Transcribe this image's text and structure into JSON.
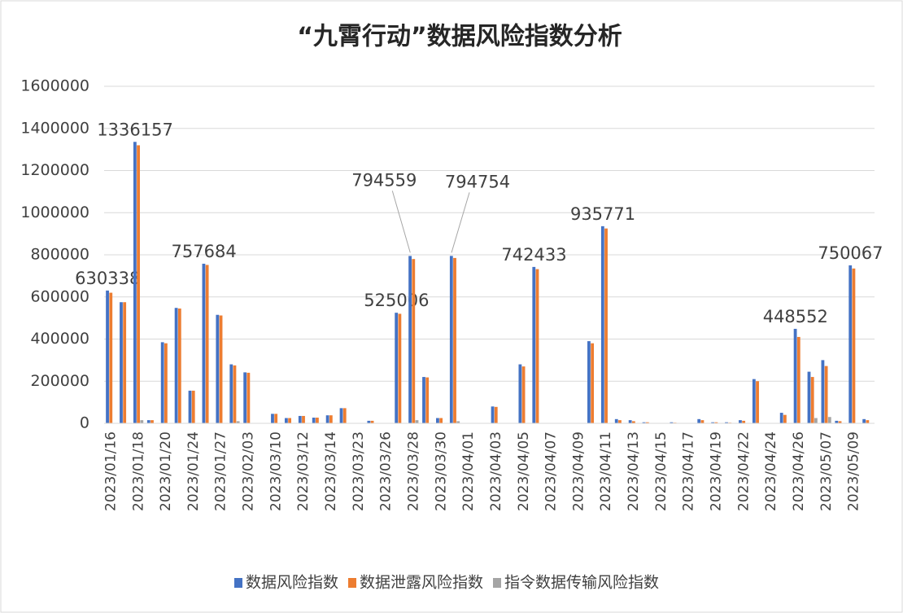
{
  "chart_data": {
    "type": "bar",
    "title": "“九霄行动”数据风险指数分析",
    "categories": [
      "2023/01/16",
      null,
      "2023/01/18",
      null,
      "2023/01/20",
      null,
      "2023/01/24",
      null,
      "2023/01/27",
      null,
      "2023/02/03",
      null,
      "2023/03/10",
      null,
      "2023/03/12",
      null,
      "2023/03/14",
      null,
      "2023/03/23",
      null,
      "2023/03/26",
      null,
      "2023/03/28",
      null,
      "2023/03/30",
      null,
      "2023/04/01",
      null,
      "2023/04/03",
      null,
      "2023/04/05",
      null,
      "2023/04/07",
      null,
      "2023/04/09",
      null,
      "2023/04/11",
      null,
      "2023/04/13",
      null,
      "2023/04/15",
      null,
      "2023/04/17",
      null,
      "2023/04/19",
      null,
      "2023/04/22",
      null,
      "2023/04/24",
      null,
      "2023/04/26",
      null,
      "2023/05/07",
      null,
      "2023/05/09",
      null
    ],
    "series": [
      {
        "name": "数据风险指数",
        "color": "#4472c4",
        "values": [
          630338,
          575000,
          1336157,
          15000,
          385000,
          548000,
          155000,
          757684,
          515000,
          280000,
          242000,
          0,
          45000,
          25000,
          35000,
          27000,
          38000,
          72000,
          0,
          12000,
          0,
          525006,
          794559,
          220000,
          25000,
          794754,
          0,
          0,
          80000,
          0,
          280000,
          742433,
          0,
          0,
          0,
          390000,
          935771,
          20000,
          15000,
          5000,
          0,
          5000,
          0,
          20000,
          5000,
          5000,
          15000,
          210000,
          0,
          50000,
          448552,
          245000,
          300000,
          12000,
          750067,
          20000
        ],
        "value_labels": [
          "630338",
          null,
          "1336157",
          null,
          null,
          null,
          null,
          "757684",
          null,
          null,
          null,
          null,
          null,
          null,
          null,
          null,
          null,
          null,
          null,
          null,
          null,
          "525006",
          "794559",
          null,
          null,
          "794754",
          null,
          null,
          null,
          null,
          null,
          "742433",
          null,
          null,
          null,
          null,
          "935771",
          null,
          null,
          null,
          null,
          null,
          null,
          null,
          null,
          null,
          null,
          null,
          null,
          null,
          "448552",
          null,
          null,
          null,
          "750067",
          null
        ]
      },
      {
        "name": "数据泄露风险指数",
        "color": "#ed7d31",
        "values": [
          620000,
          575000,
          1320000,
          15000,
          380000,
          545000,
          155000,
          752000,
          512000,
          275000,
          240000,
          0,
          45000,
          25000,
          35000,
          27000,
          38000,
          72000,
          0,
          12000,
          0,
          520000,
          780000,
          218000,
          25000,
          785000,
          0,
          0,
          78000,
          0,
          270000,
          732000,
          0,
          0,
          0,
          380000,
          925000,
          15000,
          10000,
          5000,
          0,
          3000,
          0,
          15000,
          5000,
          3000,
          12000,
          200000,
          0,
          40000,
          410000,
          220000,
          272000,
          10000,
          735000,
          15000
        ]
      },
      {
        "name": "指令数据传输风险指数",
        "color": "#a5a5a5",
        "values": [
          0,
          0,
          15000,
          0,
          0,
          0,
          0,
          0,
          0,
          10000,
          0,
          0,
          0,
          0,
          0,
          0,
          0,
          0,
          0,
          0,
          0,
          0,
          15000,
          0,
          0,
          10000,
          0,
          0,
          0,
          0,
          0,
          0,
          0,
          0,
          0,
          0,
          0,
          0,
          0,
          0,
          0,
          0,
          0,
          0,
          0,
          0,
          0,
          0,
          0,
          0,
          0,
          25000,
          30000,
          0,
          0,
          0
        ]
      }
    ],
    "ylim": [
      0,
      1600000
    ],
    "yticks": [
      0,
      200000,
      400000,
      600000,
      800000,
      1000000,
      1200000,
      1400000,
      1600000
    ],
    "grid": true,
    "legend": "bottom"
  }
}
